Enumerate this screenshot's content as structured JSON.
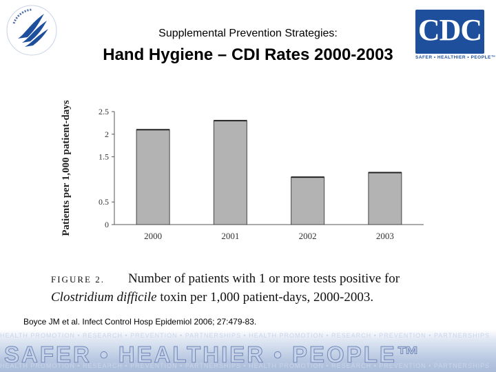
{
  "header": {
    "subtitle": "Supplemental Prevention Strategies:",
    "title": "Hand Hygiene – CDI Rates 2000-2003"
  },
  "logos": {
    "cdc_text": "CDC",
    "cdc_tagline": "SAFER • HEALTHIER • PEOPLE™",
    "cdc_color": "#1e4f9c",
    "hhs_seal_icon": "hhs-eagle-seal-icon"
  },
  "chart_data": {
    "type": "bar",
    "categories": [
      "2000",
      "2001",
      "2002",
      "2003"
    ],
    "values": [
      2.1,
      2.3,
      1.05,
      1.15
    ],
    "ylabel": "Patients per 1,000 patient-days",
    "xlabel": "",
    "ylim": [
      0,
      2.5
    ],
    "yticks": [
      0,
      0.5,
      1.5,
      2,
      2.5
    ],
    "ytick_labels": [
      "0",
      "0.5",
      "1.5",
      "2",
      "2.5"
    ],
    "bar_color": "#b3b3b3",
    "grid": false
  },
  "caption": {
    "figure_label": "FIGURE 2.",
    "text_line1": "Number of patients with 1 or more tests positive for",
    "text_italic": "Clostridium difficile",
    "text_line2": " toxin per 1,000 patient-days, 2000-2003."
  },
  "citation": "Boyce JM et al. Infect Control Hosp Epidemiol 2006; 27:479-83.",
  "footer": {
    "banner_text": "SAFER • HEALTHIER • PEOPLE™",
    "background_words": "HEALTH PROMOTION • RESEARCH • PREVENTION • PARTNERSHIPS • HEALTH PROMOTION • RESEARCH • PREVENTION • PARTNERSHIPS"
  }
}
